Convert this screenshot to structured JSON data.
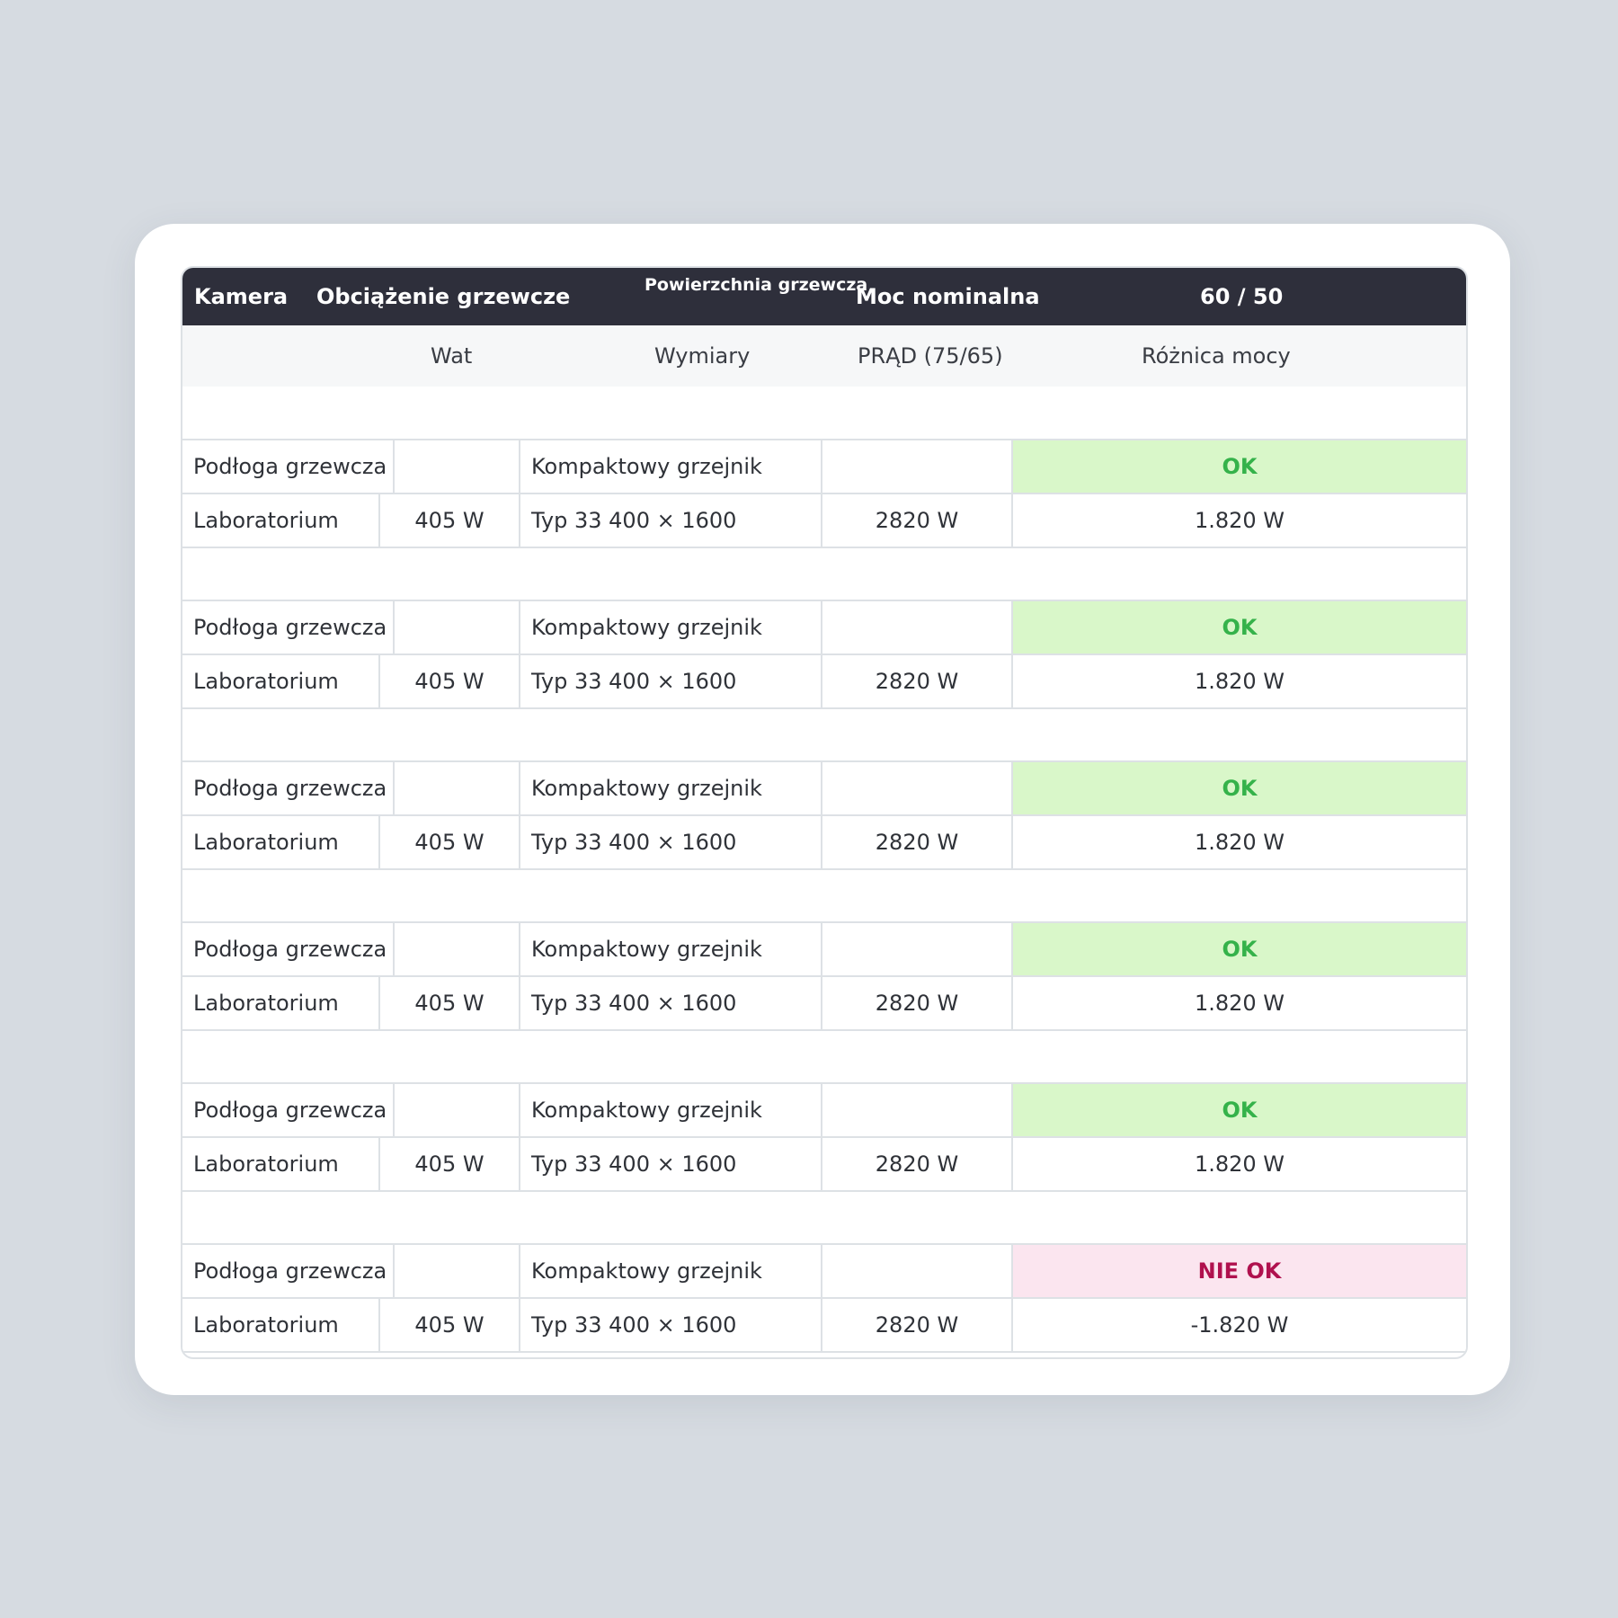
{
  "header": {
    "camera": "Kamera",
    "load": "Obciążenie grzewcze",
    "surface": "Powierzchnia grzewcza",
    "nominal": "Moc nominalna",
    "ratio": "60 / 50"
  },
  "subheader": {
    "watt": "Wat",
    "dimensions": "Wymiary",
    "current": "PRĄD (75/65)",
    "difference": "Różnica mocy"
  },
  "rows": [
    {
      "type_a": "Podłoga grzewcza",
      "type_b": "Kompaktowy grzejnik",
      "status": "OK",
      "status_kind": "ok",
      "room": "Laboratorium",
      "load": "405 W",
      "model": "Typ 33 400 × 1600",
      "power": "2820 W",
      "diff": "1.820 W"
    },
    {
      "type_a": "Podłoga grzewcza",
      "type_b": "Kompaktowy grzejnik",
      "status": "OK",
      "status_kind": "ok",
      "room": "Laboratorium",
      "load": "405 W",
      "model": "Typ 33 400 × 1600",
      "power": "2820 W",
      "diff": "1.820 W"
    },
    {
      "type_a": "Podłoga grzewcza",
      "type_b": "Kompaktowy grzejnik",
      "status": "OK",
      "status_kind": "ok",
      "room": "Laboratorium",
      "load": "405 W",
      "model": "Typ 33 400 × 1600",
      "power": "2820 W",
      "diff": "1.820 W"
    },
    {
      "type_a": "Podłoga grzewcza",
      "type_b": "Kompaktowy grzejnik",
      "status": "OK",
      "status_kind": "ok",
      "room": "Laboratorium",
      "load": "405 W",
      "model": "Typ 33 400 × 1600",
      "power": "2820 W",
      "diff": "1.820 W"
    },
    {
      "type_a": "Podłoga grzewcza",
      "type_b": "Kompaktowy grzejnik",
      "status": "OK",
      "status_kind": "ok",
      "room": "Laboratorium",
      "load": "405 W",
      "model": "Typ 33 400 × 1600",
      "power": "2820 W",
      "diff": "1.820 W"
    },
    {
      "type_a": "Podłoga grzewcza",
      "type_b": "Kompaktowy grzejnik",
      "status": "NIE OK",
      "status_kind": "nok",
      "room": "Laboratorium",
      "load": "405 W",
      "model": "Typ 33 400 × 1600",
      "power": "2820 W",
      "diff": "-1.820 W"
    }
  ],
  "colors": {
    "header_bg": "#2e2f3b",
    "ok_bg": "#d9f7c9",
    "ok_text": "#35b24a",
    "nok_bg": "#fbe5ef",
    "nok_text": "#b0114e"
  }
}
